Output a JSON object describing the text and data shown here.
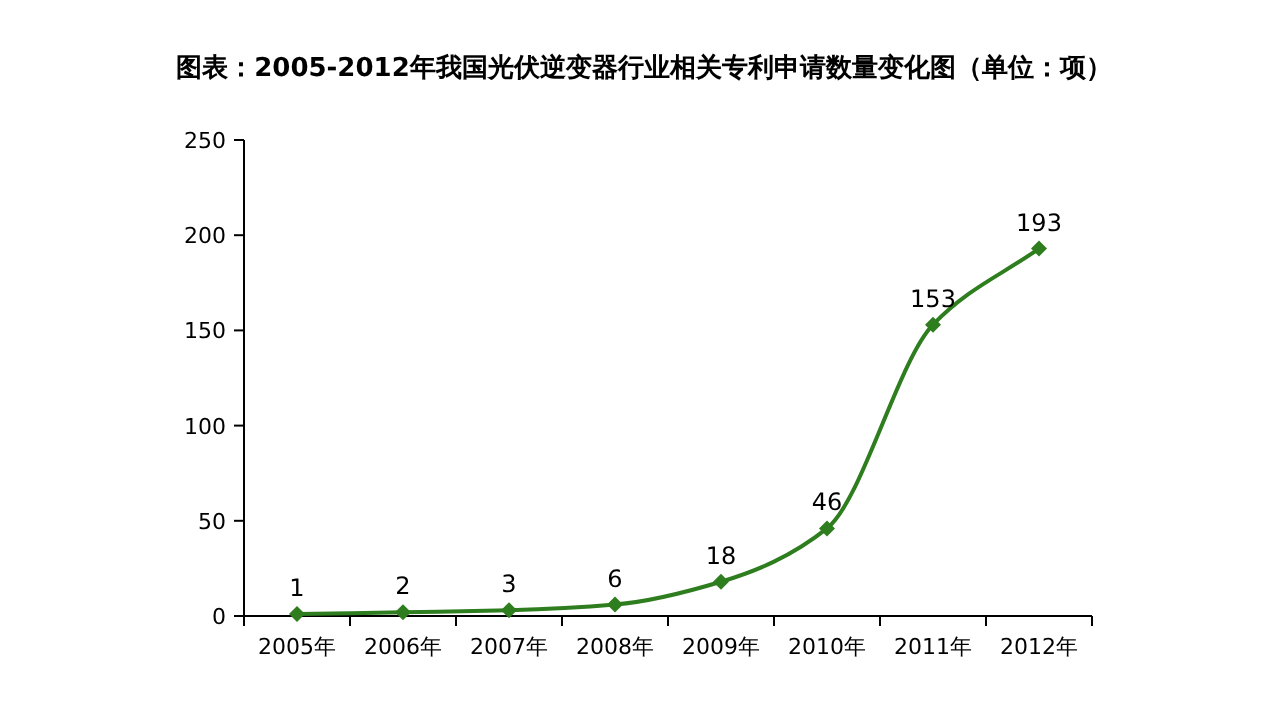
{
  "chart_data": {
    "type": "line",
    "title": "图表：2005-2012年我国光伏逆变器行业相关专利申请数量变化图（单位：项）",
    "categories": [
      "2005年",
      "2006年",
      "2007年",
      "2008年",
      "2009年",
      "2010年",
      "2011年",
      "2012年"
    ],
    "values": [
      1,
      2,
      3,
      6,
      18,
      46,
      153,
      193
    ],
    "color": "#2e7d1e",
    "marker": "diamond",
    "line_style": "solid",
    "data_labels": true,
    "ylim": [
      0,
      250
    ],
    "yticks": [
      0,
      50,
      100,
      150,
      200,
      250
    ]
  }
}
